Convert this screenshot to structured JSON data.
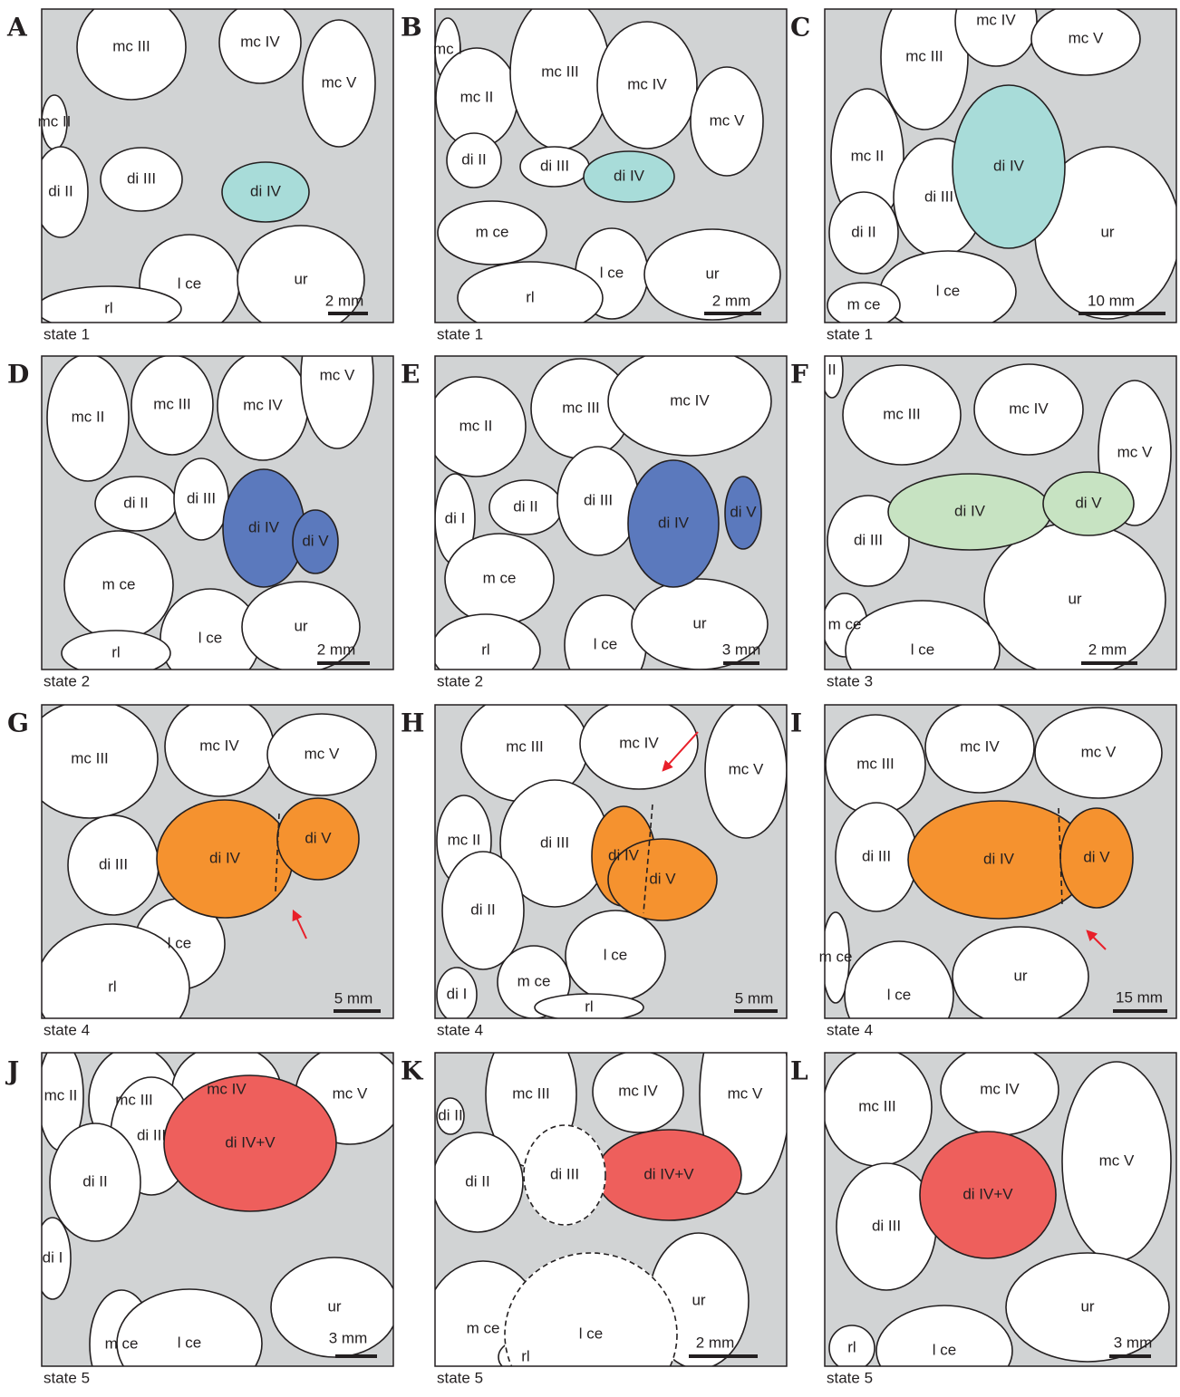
{
  "panels": [
    {
      "letter": "A",
      "labels": [
        "mc III",
        "mc IV",
        "mc V",
        "mc II",
        "di II",
        "di III",
        "di IV",
        "l ce",
        "ur",
        "rl"
      ],
      "scale": "2 mm",
      "state": "state 1"
    },
    {
      "letter": "B",
      "labels": [
        "mc I",
        "mc II",
        "mc III",
        "mc IV",
        "mc V",
        "di II",
        "di III",
        "di IV",
        "m ce",
        "l ce",
        "ur",
        "rl"
      ],
      "scale": "2 mm",
      "state": "state 1"
    },
    {
      "letter": "C",
      "labels": [
        "mc III",
        "mc IV",
        "mc V",
        "mc II",
        "di IV",
        "di III",
        "di II",
        "ur",
        "l ce",
        "m ce"
      ],
      "scale": "10 mm",
      "state": "state 1"
    },
    {
      "letter": "D",
      "labels": [
        "mc II",
        "mc III",
        "mc IV",
        "mc V",
        "di II",
        "di III",
        "di IV",
        "di V",
        "m ce",
        "l ce",
        "ur",
        "rl"
      ],
      "scale": "2 mm",
      "state": "state 2"
    },
    {
      "letter": "E",
      "labels": [
        "mc II",
        "mc III",
        "mc IV",
        "di I",
        "di II",
        "di III",
        "di IV",
        "di V",
        "m ce",
        "l ce",
        "ur",
        "rl"
      ],
      "scale": "3 mm",
      "state": "state 2"
    },
    {
      "letter": "F",
      "labels": [
        "II",
        "mc III",
        "mc IV",
        "mc V",
        "di IV",
        "di V",
        "di III",
        "ur",
        "m ce",
        "l ce"
      ],
      "scale": "2 mm",
      "state": "state 3"
    },
    {
      "letter": "G",
      "labels": [
        "mc III",
        "mc IV",
        "mc V",
        "di III",
        "di IV",
        "di V",
        "l ce",
        "rl"
      ],
      "scale": "5 mm",
      "state": "state 4"
    },
    {
      "letter": "H",
      "labels": [
        "mc III",
        "mc IV",
        "mc V",
        "mc II",
        "di III",
        "di IV",
        "di V",
        "di II",
        "l ce",
        "m ce",
        "di I",
        "rl"
      ],
      "scale": "5 mm",
      "state": "state 4"
    },
    {
      "letter": "I",
      "labels": [
        "mc III",
        "mc IV",
        "mc V",
        "di III",
        "di IV",
        "di V",
        "m ce",
        "l ce",
        "ur"
      ],
      "scale": "15 mm",
      "state": "state 4"
    },
    {
      "letter": "J",
      "labels": [
        "mc II",
        "mc III",
        "mc IV",
        "mc V",
        "di III",
        "di IV+V",
        "di II",
        "di I",
        "m ce",
        "l ce",
        "ur"
      ],
      "scale": "3 mm",
      "state": "state 5"
    },
    {
      "letter": "K",
      "labels": [
        "di II",
        "mc III",
        "mc IV",
        "mc V",
        "di IV+V",
        "di III",
        "di II",
        "m ce",
        "l ce",
        "ur",
        "rl"
      ],
      "scale": "2 mm",
      "state": "state 5"
    },
    {
      "letter": "L",
      "labels": [
        "mc III",
        "mc IV",
        "mc V",
        "di III",
        "di IV+V",
        "ur",
        "l ce",
        "rl"
      ],
      "scale": "3 mm",
      "state": "state 5"
    }
  ]
}
